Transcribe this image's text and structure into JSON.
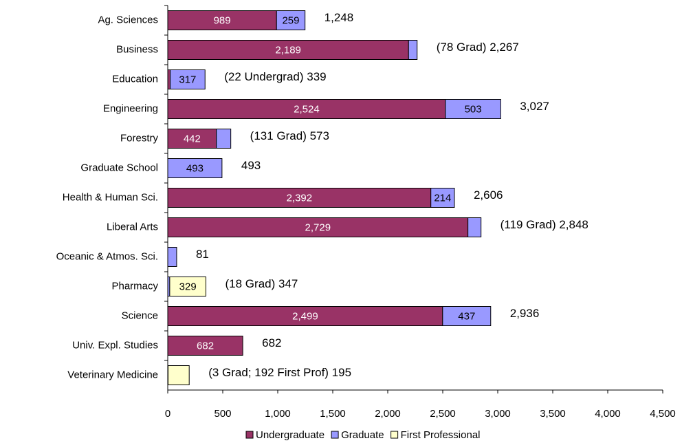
{
  "chart_data": {
    "type": "stacked-bar-horizontal",
    "categories": [
      "Ag. Sciences",
      "Business",
      "Education",
      "Engineering",
      "Forestry",
      "Graduate School",
      "Health & Human Sci.",
      "Liberal Arts",
      "Oceanic & Atmos. Sci.",
      "Pharmacy",
      "Science",
      "Univ. Expl. Studies",
      "Veterinary Medicine"
    ],
    "series": [
      {
        "name": "Undergraduate",
        "color": "#993366",
        "label_color": "#ffffff",
        "values": [
          989,
          2189,
          22,
          2524,
          442,
          null,
          2392,
          2729,
          null,
          null,
          2499,
          682,
          null
        ],
        "value_labels": [
          "989",
          "2,189",
          null,
          "2,524",
          "442",
          null,
          "2,392",
          "2,729",
          null,
          null,
          "2,499",
          "682",
          null
        ]
      },
      {
        "name": "Graduate",
        "color": "#9999ff",
        "label_color": "#000000",
        "values": [
          259,
          78,
          317,
          503,
          131,
          493,
          214,
          119,
          81,
          18,
          437,
          null,
          3
        ],
        "value_labels": [
          "259",
          null,
          "317",
          "503",
          null,
          "493",
          "214",
          null,
          null,
          null,
          "437",
          null,
          null
        ]
      },
      {
        "name": "First Professional",
        "color": "#ffffcc",
        "label_color": "#000000",
        "values": [
          null,
          null,
          null,
          null,
          null,
          null,
          null,
          null,
          null,
          329,
          null,
          null,
          192
        ],
        "value_labels": [
          null,
          null,
          null,
          null,
          null,
          null,
          null,
          null,
          null,
          "329",
          null,
          null,
          null
        ]
      }
    ],
    "annotations": [
      "1,248",
      "(78 Grad) 2,267",
      "(22 Undergrad) 339",
      "3,027",
      "(131 Grad) 573",
      "493",
      "2,606",
      "(119 Grad) 2,848",
      "81",
      "(18 Grad) 347",
      "2,936",
      "682",
      "(3 Grad; 192 First Prof) 195"
    ],
    "xlim": [
      0,
      4500
    ],
    "xticks": [
      0,
      500,
      {
        "value": 1000,
        "label": "1,000"
      },
      {
        "value": 1500,
        "label": "1,500"
      },
      {
        "value": 2000,
        "label": "2,000"
      },
      {
        "value": 2500,
        "label": "2,500"
      },
      {
        "value": 3000,
        "label": "3,000"
      },
      {
        "value": 3500,
        "label": "3,500"
      },
      {
        "value": 4000,
        "label": "4,000"
      },
      {
        "value": 4500,
        "label": "4,500"
      }
    ],
    "grid": false,
    "legend": "bottom"
  }
}
